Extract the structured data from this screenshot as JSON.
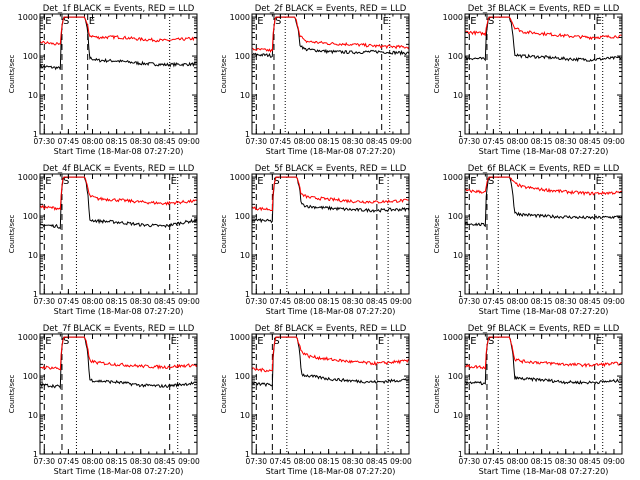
{
  "x_ticks": [
    "07:30",
    "07:45",
    "08:00",
    "08:15",
    "08:30",
    "08:45",
    "09:00"
  ],
  "y_ticks": [
    "1",
    "10",
    "100",
    "1000"
  ],
  "ylabel": "Counts/sec",
  "xlabel": "Start Time (18-Mar-08 07:27:20)",
  "marker_labels": [
    "E",
    "S",
    "E"
  ],
  "colors": {
    "events": "#000000",
    "lld": "#ff0000"
  },
  "chart_data": [
    {
      "type": "line",
      "title": "Det_1f BLACK = Events, RED = LLD",
      "xlim": [
        "07:27:20",
        "09:05"
      ],
      "ylim": [
        1,
        1200
      ],
      "yscale": "log",
      "markers": {
        "E1": "07:30",
        "S": "07:41",
        "E2": "07:57",
        "dotted": [
          "07:50",
          "08:48"
        ]
      },
      "series": [
        {
          "name": "Events",
          "x": [
            "07:27",
            "07:38",
            "07:40",
            "07:42",
            "07:48",
            "07:55",
            "07:58",
            "08:03",
            "08:15",
            "08:30",
            "08:45",
            "09:02"
          ],
          "y": [
            55,
            50,
            48,
            1000,
            1000,
            1000,
            90,
            78,
            75,
            65,
            60,
            62
          ]
        },
        {
          "name": "LLD",
          "x": [
            "07:27",
            "07:38",
            "07:40",
            "07:42",
            "07:48",
            "07:55",
            "07:58",
            "08:03",
            "08:15",
            "08:30",
            "08:45",
            "09:02"
          ],
          "y": [
            230,
            200,
            190,
            1000,
            1000,
            1000,
            340,
            300,
            310,
            270,
            250,
            280
          ]
        }
      ]
    },
    {
      "type": "line",
      "title": "Det_2f BLACK = Events, RED = LLD",
      "xlim": [
        "07:27:20",
        "09:05"
      ],
      "ylim": [
        1,
        1200
      ],
      "yscale": "log",
      "markers": {
        "E1": "07:30",
        "S": "07:41",
        "E2": "08:48",
        "dotted": [
          "07:48",
          "08:53"
        ]
      },
      "series": [
        {
          "name": "Events",
          "x": [
            "07:27",
            "07:38",
            "07:40",
            "07:42",
            "07:48",
            "07:54",
            "07:57",
            "08:00",
            "08:15",
            "08:30",
            "08:45",
            "09:02"
          ],
          "y": [
            110,
            105,
            100,
            1000,
            1000,
            1000,
            200,
            150,
            130,
            125,
            130,
            120
          ]
        },
        {
          "name": "LLD",
          "x": [
            "07:27",
            "07:38",
            "07:40",
            "07:42",
            "07:48",
            "07:54",
            "07:57",
            "08:00",
            "08:15",
            "08:30",
            "08:45",
            "09:02"
          ],
          "y": [
            150,
            140,
            135,
            1000,
            1000,
            1000,
            350,
            240,
            210,
            200,
            180,
            170
          ]
        }
      ]
    },
    {
      "type": "line",
      "title": "Det_3f BLACK = Events, RED = LLD",
      "xlim": [
        "07:27:20",
        "09:05"
      ],
      "ylim": [
        1,
        1200
      ],
      "yscale": "log",
      "markers": {
        "E1": "07:30",
        "S": "07:41",
        "E2": "08:48",
        "dotted": [
          "07:49",
          "08:53"
        ]
      },
      "series": [
        {
          "name": "Events",
          "x": [
            "07:27",
            "07:38",
            "07:40",
            "07:42",
            "07:48",
            "07:55",
            "07:58",
            "08:03",
            "08:15",
            "08:30",
            "08:45",
            "09:02"
          ],
          "y": [
            90,
            85,
            80,
            1000,
            1000,
            1000,
            110,
            100,
            95,
            85,
            80,
            90
          ]
        },
        {
          "name": "LLD",
          "x": [
            "07:27",
            "07:38",
            "07:40",
            "07:42",
            "07:48",
            "07:55",
            "07:58",
            "08:03",
            "08:15",
            "08:30",
            "08:45",
            "09:02"
          ],
          "y": [
            420,
            380,
            360,
            1000,
            1000,
            1000,
            550,
            420,
            380,
            330,
            300,
            320
          ]
        }
      ]
    },
    {
      "type": "line",
      "title": "Det_4f BLACK = Events, RED = LLD",
      "xlim": [
        "07:27:20",
        "09:05"
      ],
      "ylim": [
        1,
        1200
      ],
      "yscale": "log",
      "markers": {
        "E1": "07:30",
        "S": "07:41",
        "E2": "08:48",
        "dotted": [
          "07:50",
          "08:53"
        ]
      },
      "series": [
        {
          "name": "Events",
          "x": [
            "07:27",
            "07:38",
            "07:40",
            "07:42",
            "07:48",
            "07:55",
            "07:58",
            "08:03",
            "08:15",
            "08:30",
            "08:45",
            "09:02"
          ],
          "y": [
            60,
            55,
            52,
            1000,
            1000,
            1000,
            80,
            75,
            70,
            60,
            55,
            75
          ]
        },
        {
          "name": "LLD",
          "x": [
            "07:27",
            "07:38",
            "07:40",
            "07:42",
            "07:48",
            "07:55",
            "07:58",
            "08:03",
            "08:15",
            "08:30",
            "08:45",
            "09:02"
          ],
          "y": [
            170,
            160,
            150,
            1000,
            1000,
            1000,
            330,
            280,
            260,
            230,
            210,
            240
          ]
        }
      ]
    },
    {
      "type": "line",
      "title": "Det_5f BLACK = Events, RED = LLD",
      "xlim": [
        "07:27:20",
        "09:05"
      ],
      "ylim": [
        1,
        1200
      ],
      "yscale": "log",
      "markers": {
        "E1": "07:30",
        "S": "07:40",
        "E2": "08:45",
        "dotted": [
          "07:49",
          "08:52"
        ]
      },
      "series": [
        {
          "name": "Events",
          "x": [
            "07:27",
            "07:38",
            "07:40",
            "07:42",
            "07:48",
            "07:55",
            "07:58",
            "08:03",
            "08:15",
            "08:30",
            "08:45",
            "09:02"
          ],
          "y": [
            80,
            75,
            72,
            1000,
            1000,
            1000,
            200,
            175,
            160,
            145,
            140,
            150
          ]
        },
        {
          "name": "LLD",
          "x": [
            "07:27",
            "07:38",
            "07:40",
            "07:42",
            "07:48",
            "07:55",
            "07:58",
            "08:03",
            "08:15",
            "08:30",
            "08:45",
            "09:02"
          ],
          "y": [
            160,
            150,
            145,
            1000,
            1000,
            1000,
            350,
            300,
            270,
            240,
            230,
            250
          ]
        }
      ]
    },
    {
      "type": "line",
      "title": "Det_6f BLACK = Events, RED = LLD",
      "xlim": [
        "07:27:20",
        "09:05"
      ],
      "ylim": [
        1,
        1200
      ],
      "yscale": "log",
      "markers": {
        "E1": "07:30",
        "S": "07:41",
        "E2": "08:48",
        "dotted": [
          "07:48",
          "08:53"
        ]
      },
      "series": [
        {
          "name": "Events",
          "x": [
            "07:27",
            "07:38",
            "07:40",
            "07:42",
            "07:48",
            "07:55",
            "07:58",
            "08:03",
            "08:15",
            "08:30",
            "08:45",
            "09:02"
          ],
          "y": [
            65,
            60,
            58,
            1000,
            1000,
            1000,
            120,
            110,
            100,
            95,
            90,
            95
          ]
        },
        {
          "name": "LLD",
          "x": [
            "07:27",
            "07:38",
            "07:40",
            "07:42",
            "07:48",
            "07:55",
            "07:58",
            "08:03",
            "08:15",
            "08:30",
            "08:45",
            "09:02"
          ],
          "y": [
            450,
            420,
            400,
            1000,
            1000,
            1000,
            700,
            560,
            480,
            420,
            380,
            400
          ]
        }
      ]
    },
    {
      "type": "line",
      "title": "Det_7f BLACK = Events, RED = LLD",
      "xlim": [
        "07:27:20",
        "09:05"
      ],
      "ylim": [
        1,
        1200
      ],
      "yscale": "log",
      "markers": {
        "E1": "07:30",
        "S": "07:41",
        "E2": "08:48",
        "dotted": [
          "07:50",
          "08:53"
        ]
      },
      "series": [
        {
          "name": "Events",
          "x": [
            "07:27",
            "07:38",
            "07:40",
            "07:42",
            "07:48",
            "07:55",
            "07:58",
            "08:03",
            "08:15",
            "08:30",
            "08:45",
            "09:02"
          ],
          "y": [
            60,
            55,
            52,
            1000,
            1000,
            1000,
            80,
            75,
            70,
            58,
            55,
            65
          ]
        },
        {
          "name": "LLD",
          "x": [
            "07:27",
            "07:38",
            "07:40",
            "07:42",
            "07:48",
            "07:55",
            "07:58",
            "08:03",
            "08:15",
            "08:30",
            "08:45",
            "09:02"
          ],
          "y": [
            170,
            160,
            150,
            1000,
            1000,
            1000,
            250,
            220,
            200,
            180,
            170,
            190
          ]
        }
      ]
    },
    {
      "type": "line",
      "title": "Det_8f BLACK = Events, RED = LLD",
      "xlim": [
        "07:27:20",
        "09:05"
      ],
      "ylim": [
        1,
        1200
      ],
      "yscale": "log",
      "markers": {
        "E1": "07:30",
        "S": "07:40",
        "E2": "08:45",
        "dotted": [
          "07:49",
          "08:52"
        ]
      },
      "series": [
        {
          "name": "Events",
          "x": [
            "07:27",
            "07:38",
            "07:40",
            "07:42",
            "07:48",
            "07:55",
            "07:58",
            "08:03",
            "08:15",
            "08:30",
            "08:45",
            "09:02"
          ],
          "y": [
            65,
            60,
            58,
            1000,
            1000,
            1000,
            110,
            100,
            85,
            75,
            70,
            80
          ]
        },
        {
          "name": "LLD",
          "x": [
            "07:27",
            "07:38",
            "07:40",
            "07:42",
            "07:48",
            "07:55",
            "07:58",
            "08:03",
            "08:15",
            "08:30",
            "08:45",
            "09:02"
          ],
          "y": [
            150,
            140,
            135,
            1000,
            1000,
            1000,
            420,
            320,
            270,
            230,
            210,
            240
          ]
        }
      ]
    },
    {
      "type": "line",
      "title": "Det_9f BLACK = Events, RED = LLD",
      "xlim": [
        "07:27:20",
        "09:05"
      ],
      "ylim": [
        1,
        1200
      ],
      "yscale": "log",
      "markers": {
        "E1": "07:30",
        "S": "07:41",
        "E2": "08:48",
        "dotted": [
          "07:48",
          "08:53"
        ]
      },
      "series": [
        {
          "name": "Events",
          "x": [
            "07:27",
            "07:38",
            "07:40",
            "07:42",
            "07:48",
            "07:55",
            "07:58",
            "08:03",
            "08:15",
            "08:30",
            "08:45",
            "09:02"
          ],
          "y": [
            70,
            65,
            62,
            1000,
            1000,
            1000,
            90,
            85,
            80,
            70,
            68,
            75
          ]
        },
        {
          "name": "LLD",
          "x": [
            "07:27",
            "07:38",
            "07:40",
            "07:42",
            "07:48",
            "07:55",
            "07:58",
            "08:03",
            "08:15",
            "08:30",
            "08:45",
            "09:02"
          ],
          "y": [
            180,
            170,
            160,
            1000,
            1000,
            1000,
            270,
            240,
            220,
            200,
            190,
            210
          ]
        }
      ]
    }
  ]
}
